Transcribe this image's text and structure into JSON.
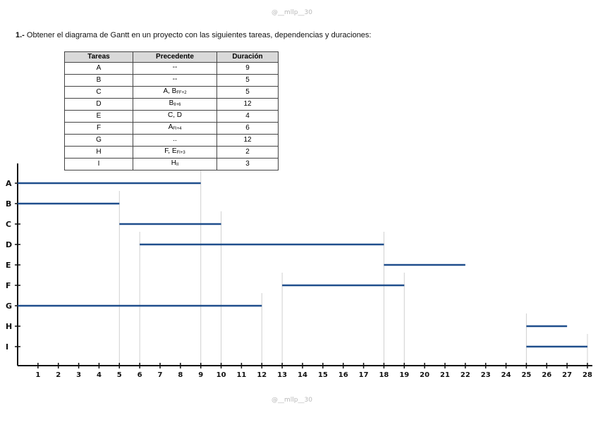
{
  "watermark": "@__mllp__30",
  "title": {
    "number": "1.-",
    "text": " Obtener el diagrama de Gantt en un proyecto con las siguientes tareas, dependencias y duraciones:"
  },
  "table": {
    "headers": [
      "Tareas",
      "Precedente",
      "Duración"
    ],
    "rows": [
      [
        "A",
        "--",
        "",
        "9"
      ],
      [
        "B",
        "--",
        "",
        "5"
      ],
      [
        "C",
        "A, B",
        "FF+2",
        "5"
      ],
      [
        "D",
        "B",
        "II+6",
        "12"
      ],
      [
        "E",
        "C, D",
        "",
        "4"
      ],
      [
        "F",
        "A",
        "FI+4",
        "6"
      ],
      [
        "G",
        "..",
        "",
        "12"
      ],
      [
        "H",
        "F, E",
        "FI+3",
        "2"
      ],
      [
        "I",
        "H",
        "II",
        "3"
      ]
    ]
  },
  "chart_data": {
    "type": "gantt",
    "xlim": [
      0,
      28
    ],
    "xticks": [
      1,
      2,
      3,
      4,
      5,
      6,
      7,
      8,
      9,
      10,
      11,
      12,
      13,
      14,
      15,
      16,
      17,
      18,
      19,
      20,
      21,
      22,
      23,
      24,
      25,
      26,
      27,
      28
    ],
    "tasks": [
      {
        "name": "A",
        "start": 0,
        "end": 9
      },
      {
        "name": "B",
        "start": 0,
        "end": 5
      },
      {
        "name": "C",
        "start": 5,
        "end": 10
      },
      {
        "name": "D",
        "start": 6,
        "end": 18
      },
      {
        "name": "E",
        "start": 18,
        "end": 22
      },
      {
        "name": "F",
        "start": 13,
        "end": 19
      },
      {
        "name": "G",
        "start": 0,
        "end": 12
      },
      {
        "name": "H",
        "start": 25,
        "end": 27
      },
      {
        "name": "I",
        "start": 25,
        "end": 28
      }
    ],
    "guides": [
      5,
      6,
      9,
      10,
      12,
      13,
      18,
      19,
      25,
      28
    ],
    "bar_color": "#1f4e8c"
  }
}
